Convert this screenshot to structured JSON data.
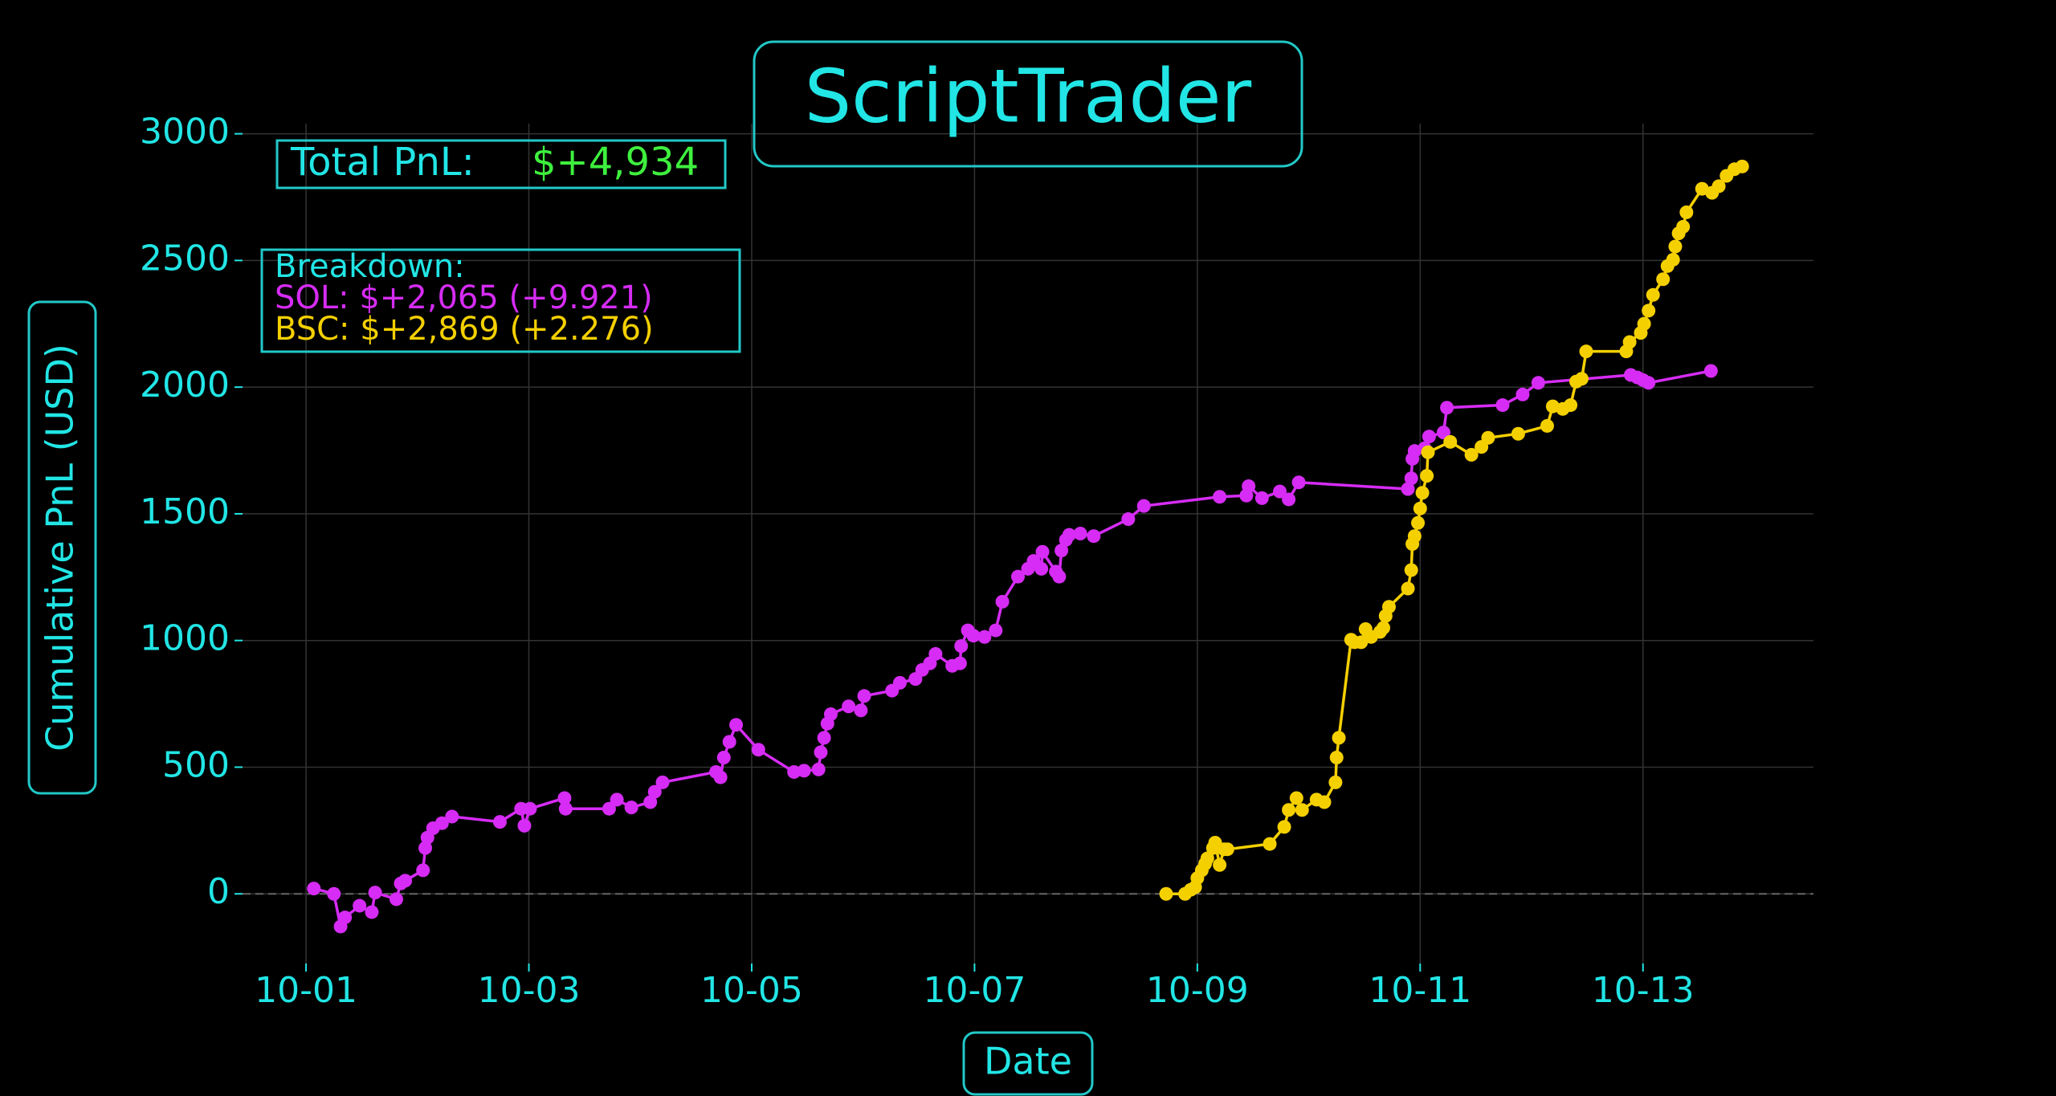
{
  "chart_data": {
    "type": "line",
    "title": "ScriptTrader",
    "xlabel": "Date",
    "ylabel": "Cumulative PnL (USD)",
    "total_label": "Total PnL:",
    "total_value": "$+4,934",
    "breakdown": {
      "title": "Breakdown:",
      "lines": [
        "SOL: $+2,065 (+9.921)",
        "BSC: $+2,869 (+2.276)"
      ]
    },
    "grid": true,
    "zero_line": true,
    "xlim": [
      0.43,
      14.53
    ],
    "ylim": [
      -275,
      3040
    ],
    "xticks": [
      {
        "value": 1,
        "label": "10-01"
      },
      {
        "value": 3,
        "label": "10-03"
      },
      {
        "value": 5,
        "label": "10-05"
      },
      {
        "value": 7,
        "label": "10-07"
      },
      {
        "value": 9,
        "label": "10-09"
      },
      {
        "value": 11,
        "label": "10-11"
      },
      {
        "value": 13,
        "label": "10-13"
      }
    ],
    "yticks": [
      0,
      500,
      1000,
      1500,
      2000,
      2500,
      3000
    ],
    "series": [
      {
        "color": "#d62cf5",
        "x": [
          1.07,
          1.25,
          1.31,
          1.35,
          1.48,
          1.59,
          1.62,
          1.81,
          1.85,
          1.89,
          2.05,
          2.07,
          2.09,
          2.14,
          2.22,
          2.31,
          2.74,
          2.93,
          2.96,
          3.01,
          3.32,
          3.33,
          3.72,
          3.79,
          3.92,
          4.09,
          4.13,
          4.2,
          4.68,
          4.72,
          4.75,
          4.8,
          4.86,
          5.06,
          5.38,
          5.47,
          5.6,
          5.62,
          5.65,
          5.68,
          5.71,
          5.87,
          5.98,
          6.01,
          6.26,
          6.33,
          6.47,
          6.53,
          6.6,
          6.65,
          6.8,
          6.87,
          6.88,
          6.94,
          6.99,
          7.09,
          7.19,
          7.25,
          7.39,
          7.48,
          7.53,
          7.6,
          7.61,
          7.73,
          7.76,
          7.78,
          7.82,
          7.85,
          7.95,
          8.07,
          8.38,
          8.52,
          9.2,
          9.44,
          9.46,
          9.58,
          9.74,
          9.82,
          9.91,
          10.89,
          10.92,
          10.93,
          10.95,
          11.04,
          11.08,
          11.21,
          11.24,
          11.74,
          11.92,
          12.06,
          12.89,
          12.95,
          13.0,
          13.05,
          13.61
        ],
        "values": [
          21,
          0,
          -129,
          -93,
          -47,
          -72,
          5,
          -21,
          41,
          52,
          93,
          181,
          222,
          259,
          279,
          305,
          284,
          336,
          269,
          336,
          378,
          336,
          336,
          372,
          341,
          362,
          403,
          440,
          481,
          460,
          538,
          600,
          667,
          569,
          481,
          486,
          491,
          559,
          616,
          672,
          709,
          740,
          724,
          781,
          802,
          833,
          848,
          884,
          910,
          947,
          900,
          910,
          978,
          1040,
          1019,
          1014,
          1040,
          1153,
          1252,
          1283,
          1314,
          1283,
          1350,
          1272,
          1252,
          1355,
          1397,
          1417,
          1422,
          1412,
          1479,
          1531,
          1567,
          1572,
          1609,
          1562,
          1588,
          1557,
          1624,
          1598,
          1640,
          1717,
          1748,
          1759,
          1805,
          1821,
          1919,
          1929,
          1971,
          2017,
          2048,
          2038,
          2028,
          2017,
          2064
        ]
      },
      {
        "color": "#f5d000",
        "x": [
          8.72,
          8.89,
          8.94,
          8.98,
          9.0,
          9.04,
          9.07,
          9.09,
          9.14,
          9.16,
          9.2,
          9.24,
          9.27,
          9.65,
          9.78,
          9.82,
          9.89,
          9.94,
          10.07,
          10.14,
          10.24,
          10.25,
          10.27,
          10.38,
          10.41,
          10.47,
          10.51,
          10.56,
          10.64,
          10.67,
          10.69,
          10.72,
          10.89,
          10.92,
          10.93,
          10.95,
          10.98,
          11.0,
          11.02,
          11.06,
          11.07,
          11.27,
          11.46,
          11.55,
          11.61,
          11.88,
          12.14,
          12.19,
          12.28,
          12.35,
          12.4,
          12.45,
          12.49,
          12.85,
          12.88,
          12.98,
          13.01,
          13.05,
          13.09,
          13.18,
          13.22,
          13.27,
          13.29,
          13.32,
          13.36,
          13.39,
          13.53,
          13.62,
          13.68,
          13.75,
          13.82,
          13.89
        ],
        "values": [
          0,
          0,
          16,
          26,
          62,
          93,
          119,
          140,
          181,
          202,
          114,
          176,
          176,
          197,
          264,
          331,
          378,
          331,
          372,
          362,
          440,
          538,
          616,
          1003,
          993,
          993,
          1045,
          1014,
          1034,
          1050,
          1097,
          1133,
          1205,
          1278,
          1381,
          1412,
          1464,
          1521,
          1583,
          1650,
          1743,
          1784,
          1733,
          1764,
          1800,
          1816,
          1847,
          1924,
          1914,
          1929,
          2022,
          2033,
          2141,
          2141,
          2178,
          2214,
          2250,
          2302,
          2364,
          2426,
          2478,
          2503,
          2555,
          2607,
          2633,
          2690,
          2783,
          2767,
          2793,
          2834,
          2860,
          2871
        ]
      }
    ]
  }
}
